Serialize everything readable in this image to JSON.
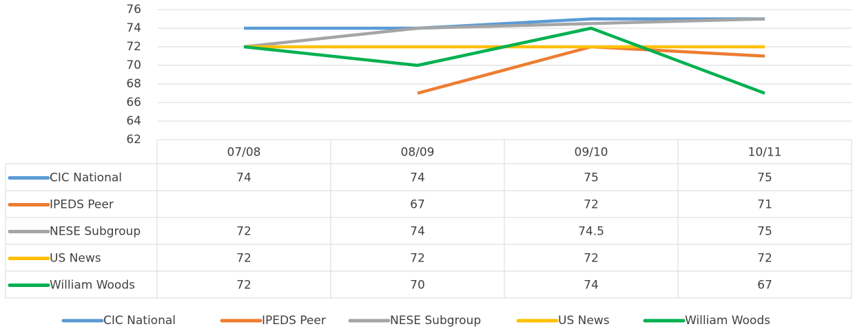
{
  "chart_data": {
    "type": "line",
    "categories": [
      "07/08",
      "08/09",
      "09/10",
      "10/11"
    ],
    "series": [
      {
        "name": "CIC National",
        "color": "#5b9bd5",
        "values": [
          74,
          74,
          75,
          75
        ]
      },
      {
        "name": "IPEDS Peer",
        "color": "#ed7d31",
        "values": [
          null,
          67,
          72,
          71
        ]
      },
      {
        "name": "NESE Subgroup",
        "color": "#a5a5a5",
        "values": [
          72,
          74,
          74.5,
          75
        ]
      },
      {
        "name": "US News",
        "color": "#ffc000",
        "values": [
          72,
          72,
          72,
          72
        ]
      },
      {
        "name": "William Woods",
        "color": "#00b050",
        "values": [
          72,
          70,
          74,
          67
        ]
      }
    ],
    "ylim": [
      62,
      76
    ],
    "yticks": [
      62,
      64,
      66,
      68,
      70,
      72,
      74,
      76
    ],
    "grid": true,
    "legend": "bottom"
  }
}
